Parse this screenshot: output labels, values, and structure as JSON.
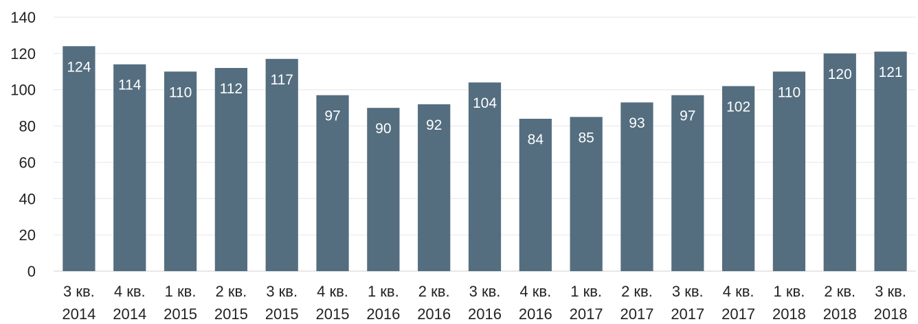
{
  "chart_data": {
    "type": "bar",
    "title": "",
    "xlabel": "",
    "ylabel": "",
    "ylim": [
      0,
      140
    ],
    "yticks": [
      0,
      20,
      40,
      60,
      80,
      100,
      120,
      140
    ],
    "grid": true,
    "bar_color": "#546e80",
    "categories": [
      [
        "3 кв.",
        "2014"
      ],
      [
        "4 кв.",
        "2014"
      ],
      [
        "1 кв.",
        "2015"
      ],
      [
        "2 кв.",
        "2015"
      ],
      [
        "3 кв.",
        "2015"
      ],
      [
        "4 кв.",
        "2015"
      ],
      [
        "1 кв.",
        "2016"
      ],
      [
        "2 кв.",
        "2016"
      ],
      [
        "3 кв.",
        "2016"
      ],
      [
        "4 кв.",
        "2016"
      ],
      [
        "1 кв.",
        "2017"
      ],
      [
        "2 кв.",
        "2017"
      ],
      [
        "3 кв.",
        "2017"
      ],
      [
        "4 кв.",
        "2017"
      ],
      [
        "1 кв.",
        "2018"
      ],
      [
        "2 кв.",
        "2018"
      ],
      [
        "3 кв.",
        "2018"
      ]
    ],
    "values": [
      124,
      114,
      110,
      112,
      117,
      97,
      90,
      92,
      104,
      84,
      85,
      93,
      97,
      102,
      110,
      120,
      121
    ]
  }
}
